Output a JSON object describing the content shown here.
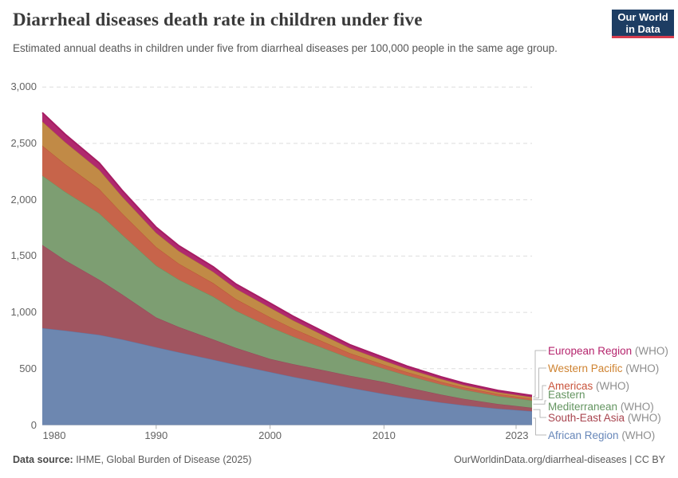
{
  "header": {
    "title": "Diarrheal diseases death rate in children under five",
    "subtitle": "Estimated annual deaths in children under five from diarrheal diseases per 100,000 people in the same age group.",
    "logo": {
      "line1": "Our World",
      "line2": "in Data",
      "bg_color": "#1d3d63",
      "accent_color": "#d73c4e"
    }
  },
  "chart_data": {
    "type": "area",
    "stacked": true,
    "title": "Diarrheal diseases death rate in children under five",
    "unit": "deaths per 100,000 children under five",
    "xlim": [
      1980,
      2023
    ],
    "ylim": [
      0,
      3000
    ],
    "grid": "horizontal-dashed",
    "legend_position": "right",
    "x": [
      1980,
      1982,
      1985,
      1987,
      1990,
      1992,
      1995,
      1997,
      2000,
      2002,
      2005,
      2007,
      2010,
      2012,
      2015,
      2017,
      2020,
      2023
    ],
    "series": [
      {
        "id": "african-region",
        "name": "African Region",
        "suffix": "(WHO)",
        "fill": "#6d87b0",
        "line": "#5e79a8",
        "label_color": "#6787b9",
        "line_width": 1,
        "values": [
          860,
          838,
          800,
          760,
          690,
          645,
          580,
          535,
          470,
          428,
          370,
          330,
          276,
          243,
          200,
          175,
          145,
          122
        ]
      },
      {
        "id": "south-east-asia",
        "name": "South-East Asia",
        "suffix": "(WHO)",
        "fill": "#a05560",
        "line": "#96485a",
        "label_color": "#a8454f",
        "line_width": 1,
        "values": [
          738,
          625,
          490,
          400,
          265,
          225,
          180,
          150,
          117,
          113,
          110,
          108,
          106,
          92,
          70,
          58,
          42,
          31
        ]
      },
      {
        "id": "eastern-mediterranean",
        "name": "Eastern Mediterranean",
        "wrap": [
          "Eastern",
          "Mediterranean"
        ],
        "suffix": "(WHO)",
        "fill": "#7d9e72",
        "line": "#6e945f",
        "label_color": "#649561",
        "line_width": 1,
        "values": [
          616,
          608,
          590,
          530,
          460,
          420,
          380,
          330,
          283,
          245,
          190,
          155,
          118,
          105,
          90,
          80,
          70,
          64
        ]
      },
      {
        "id": "americas",
        "name": "Americas",
        "suffix": "(WHO)",
        "fill": "#c7644a",
        "line": "#bc5638",
        "label_color": "#c9543c",
        "line_width": 1,
        "values": [
          267,
          245,
          215,
          190,
          165,
          142,
          120,
          103,
          87,
          72,
          55,
          45,
          35,
          30,
          24,
          21,
          18,
          16
        ]
      },
      {
        "id": "western-pacific",
        "name": "Western Pacific",
        "suffix": "(WHO)",
        "fill": "#c18a46",
        "line": "#b07c35",
        "label_color": "#cf8331",
        "line_width": 1,
        "values": [
          213,
          195,
          170,
          148,
          125,
          112,
          100,
          92,
          85,
          72,
          55,
          45,
          36,
          30,
          24,
          20,
          16,
          14
        ]
      },
      {
        "id": "european-region",
        "name": "European Region",
        "suffix": "(WHO)",
        "fill": "#b0296e",
        "line": "#a61d63",
        "label_color": "#b5246d",
        "line_width": 2,
        "values": [
          80,
          70,
          62,
          56,
          50,
          47,
          45,
          42,
          40,
          37,
          33,
          30,
          28,
          24,
          20,
          18,
          16,
          15
        ]
      }
    ],
    "y_ticks": [
      {
        "v": 0,
        "label": "0"
      },
      {
        "v": 500,
        "label": "500"
      },
      {
        "v": 1000,
        "label": "1,000"
      },
      {
        "v": 1500,
        "label": "1,500"
      },
      {
        "v": 2000,
        "label": "2,000"
      },
      {
        "v": 2500,
        "label": "2,500"
      },
      {
        "v": 3000,
        "label": "3,000"
      }
    ],
    "x_ticks": [
      {
        "v": 1980,
        "label": "1980"
      },
      {
        "v": 1990,
        "label": "1990"
      },
      {
        "v": 2000,
        "label": "2000"
      },
      {
        "v": 2010,
        "label": "2010"
      },
      {
        "v": 2023,
        "label": "2023"
      }
    ]
  },
  "footer": {
    "source_label": "Data source:",
    "source_text": " IHME, Global Burden of Disease (2025)",
    "attribution": "OurWorldinData.org/diarrheal-diseases | CC BY"
  }
}
